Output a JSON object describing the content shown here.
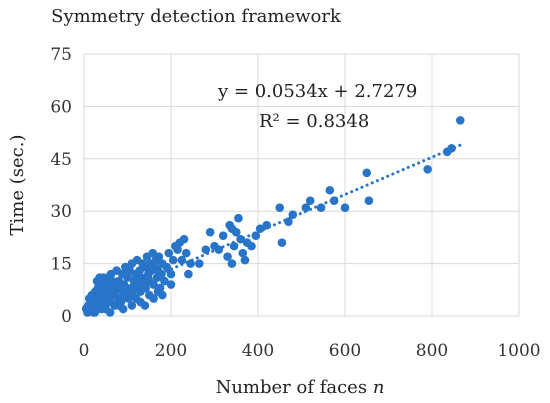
{
  "chart_data": {
    "type": "scatter",
    "title": "Symmetry detection framework",
    "xlabel": "Number of faces",
    "xlabel_var": "n",
    "ylabel": "Time (sec.)",
    "xlim": [
      0,
      1000
    ],
    "ylim": [
      0,
      75
    ],
    "x_ticks": [
      0,
      200,
      400,
      600,
      800,
      1000
    ],
    "y_ticks": [
      0,
      15,
      30,
      45,
      60,
      75
    ],
    "grid": true,
    "point_color": "#2874c8",
    "trendline": {
      "type": "linear",
      "slope": 0.0534,
      "intercept": 2.7279,
      "x_range": [
        0,
        870
      ],
      "equation": "y = 0.0534x + 2.7279",
      "r_squared": "R² = 0.8348"
    },
    "points": [
      [
        5,
        2
      ],
      [
        8,
        1
      ],
      [
        10,
        3
      ],
      [
        12,
        5
      ],
      [
        14,
        2
      ],
      [
        16,
        4
      ],
      [
        18,
        6
      ],
      [
        20,
        3
      ],
      [
        22,
        1
      ],
      [
        24,
        5
      ],
      [
        26,
        7
      ],
      [
        28,
        4
      ],
      [
        30,
        2
      ],
      [
        32,
        8
      ],
      [
        34,
        6
      ],
      [
        36,
        11
      ],
      [
        38,
        3
      ],
      [
        40,
        5
      ],
      [
        42,
        9
      ],
      [
        44,
        7
      ],
      [
        46,
        4
      ],
      [
        48,
        10
      ],
      [
        50,
        2
      ],
      [
        52,
        6
      ],
      [
        55,
        11
      ],
      [
        58,
        8
      ],
      [
        60,
        4
      ],
      [
        62,
        12
      ],
      [
        65,
        6
      ],
      [
        68,
        9
      ],
      [
        70,
        3
      ],
      [
        72,
        7
      ],
      [
        75,
        13
      ],
      [
        78,
        5
      ],
      [
        80,
        10
      ],
      [
        82,
        8
      ],
      [
        85,
        4
      ],
      [
        88,
        12
      ],
      [
        90,
        6
      ],
      [
        92,
        9
      ],
      [
        95,
        14
      ],
      [
        98,
        7
      ],
      [
        100,
        11
      ],
      [
        102,
        5
      ],
      [
        105,
        13
      ],
      [
        108,
        8
      ],
      [
        110,
        15
      ],
      [
        112,
        6
      ],
      [
        115,
        10
      ],
      [
        118,
        12
      ],
      [
        120,
        8
      ],
      [
        122,
        16
      ],
      [
        125,
        9
      ],
      [
        128,
        13
      ],
      [
        130,
        7
      ],
      [
        132,
        11
      ],
      [
        135,
        15
      ],
      [
        138,
        10
      ],
      [
        140,
        14
      ],
      [
        142,
        8
      ],
      [
        145,
        17
      ],
      [
        148,
        12
      ],
      [
        150,
        10
      ],
      [
        152,
        15
      ],
      [
        155,
        13
      ],
      [
        158,
        18
      ],
      [
        160,
        9
      ],
      [
        162,
        14
      ],
      [
        165,
        16
      ],
      [
        168,
        11
      ],
      [
        170,
        13
      ],
      [
        172,
        17
      ],
      [
        175,
        8
      ],
      [
        178,
        12
      ],
      [
        180,
        15
      ],
      [
        185,
        10
      ],
      [
        190,
        14
      ],
      [
        195,
        18
      ],
      [
        200,
        12
      ],
      [
        205,
        16
      ],
      [
        210,
        20
      ],
      [
        215,
        19
      ],
      [
        220,
        21
      ],
      [
        225,
        16
      ],
      [
        230,
        22
      ],
      [
        235,
        18
      ],
      [
        240,
        12
      ],
      [
        245,
        15
      ],
      [
        160,
        5
      ],
      [
        130,
        4
      ],
      [
        110,
        3
      ],
      [
        90,
        2
      ],
      [
        150,
        6
      ],
      [
        200,
        9
      ],
      [
        170,
        7
      ],
      [
        120,
        5
      ],
      [
        80,
        3
      ],
      [
        60,
        1
      ],
      [
        40,
        2
      ],
      [
        25,
        1
      ],
      [
        290,
        24
      ],
      [
        300,
        20
      ],
      [
        310,
        19
      ],
      [
        320,
        23
      ],
      [
        330,
        17
      ],
      [
        335,
        26
      ],
      [
        340,
        25
      ],
      [
        345,
        20
      ],
      [
        350,
        24
      ],
      [
        355,
        28
      ],
      [
        360,
        22
      ],
      [
        365,
        18
      ],
      [
        375,
        21
      ],
      [
        385,
        20
      ],
      [
        395,
        23
      ],
      [
        405,
        25
      ],
      [
        420,
        26
      ],
      [
        450,
        31
      ],
      [
        455,
        21
      ],
      [
        470,
        27
      ],
      [
        480,
        29
      ],
      [
        510,
        31
      ],
      [
        520,
        33
      ],
      [
        545,
        31
      ],
      [
        565,
        36
      ],
      [
        575,
        33
      ],
      [
        600,
        31
      ],
      [
        650,
        41
      ],
      [
        655,
        33
      ],
      [
        790,
        42
      ],
      [
        835,
        47
      ],
      [
        845,
        48
      ],
      [
        865,
        56
      ],
      [
        340,
        15
      ],
      [
        370,
        16
      ],
      [
        265,
        15
      ],
      [
        280,
        19
      ],
      [
        100,
        7
      ],
      [
        140,
        3
      ],
      [
        180,
        6
      ],
      [
        30,
        10
      ],
      [
        45,
        11
      ],
      [
        55,
        9
      ],
      [
        65,
        10
      ],
      [
        75,
        8
      ]
    ]
  }
}
